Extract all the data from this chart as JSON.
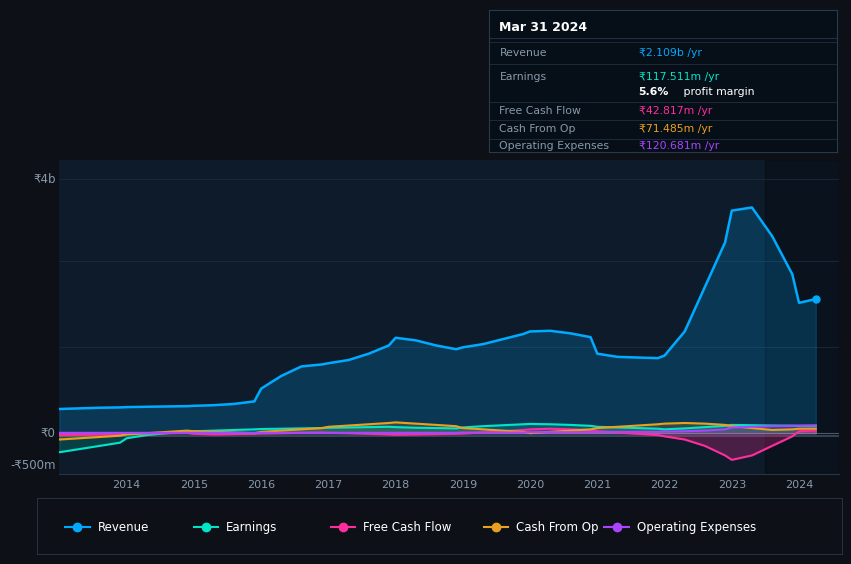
{
  "bg_color": "#0d1117",
  "plot_bg_color": "#0d1b2a",
  "grid_color": "#1a2a3a",
  "zero_line_color": "#506070",
  "grey_line_color": "#607080",
  "title": "Mar 31 2024",
  "ylabel_4b": "₹4b",
  "ylabel_0": "₹0",
  "ylabel_neg500": "-₹500m",
  "ylim": [
    -650000000,
    4300000000
  ],
  "xlim": [
    2013.0,
    2024.6
  ],
  "x": [
    2013.0,
    2013.3,
    2013.6,
    2013.9,
    2014.0,
    2014.3,
    2014.6,
    2014.9,
    2015.0,
    2015.3,
    2015.6,
    2015.9,
    2016.0,
    2016.3,
    2016.6,
    2016.9,
    2017.0,
    2017.3,
    2017.6,
    2017.9,
    2018.0,
    2018.3,
    2018.6,
    2018.9,
    2019.0,
    2019.3,
    2019.6,
    2019.9,
    2020.0,
    2020.3,
    2020.6,
    2020.9,
    2021.0,
    2021.3,
    2021.6,
    2021.9,
    2022.0,
    2022.3,
    2022.6,
    2022.9,
    2023.0,
    2023.3,
    2023.6,
    2023.9,
    2024.0,
    2024.25
  ],
  "revenue": [
    380000000,
    390000000,
    400000000,
    405000000,
    410000000,
    415000000,
    420000000,
    425000000,
    430000000,
    440000000,
    460000000,
    500000000,
    700000000,
    900000000,
    1050000000,
    1080000000,
    1100000000,
    1150000000,
    1250000000,
    1380000000,
    1500000000,
    1460000000,
    1380000000,
    1320000000,
    1350000000,
    1400000000,
    1480000000,
    1560000000,
    1600000000,
    1610000000,
    1570000000,
    1510000000,
    1250000000,
    1200000000,
    1190000000,
    1180000000,
    1220000000,
    1600000000,
    2300000000,
    3000000000,
    3500000000,
    3550000000,
    3100000000,
    2500000000,
    2050000000,
    2109000000
  ],
  "earnings": [
    -300000000,
    -250000000,
    -200000000,
    -150000000,
    -80000000,
    -30000000,
    0,
    20000000,
    30000000,
    40000000,
    50000000,
    60000000,
    65000000,
    70000000,
    75000000,
    80000000,
    85000000,
    90000000,
    95000000,
    100000000,
    95000000,
    85000000,
    80000000,
    75000000,
    90000000,
    110000000,
    125000000,
    140000000,
    145000000,
    140000000,
    130000000,
    115000000,
    100000000,
    90000000,
    80000000,
    70000000,
    60000000,
    75000000,
    95000000,
    115000000,
    130000000,
    125000000,
    120000000,
    118000000,
    115000000,
    117511000
  ],
  "free_cash_flow": [
    -30000000,
    -25000000,
    -20000000,
    -15000000,
    -10000000,
    -5000000,
    0,
    5000000,
    -10000000,
    -20000000,
    -15000000,
    -10000000,
    -5000000,
    0,
    5000000,
    10000000,
    5000000,
    0,
    -10000000,
    -20000000,
    -25000000,
    -20000000,
    -15000000,
    -10000000,
    -5000000,
    10000000,
    30000000,
    50000000,
    60000000,
    70000000,
    60000000,
    50000000,
    30000000,
    10000000,
    -10000000,
    -30000000,
    -50000000,
    -100000000,
    -200000000,
    -350000000,
    -420000000,
    -350000000,
    -200000000,
    -50000000,
    30000000,
    42817000
  ],
  "cash_from_op": [
    -100000000,
    -80000000,
    -60000000,
    -40000000,
    -20000000,
    0,
    20000000,
    40000000,
    30000000,
    20000000,
    10000000,
    0,
    20000000,
    40000000,
    60000000,
    80000000,
    100000000,
    120000000,
    140000000,
    160000000,
    170000000,
    150000000,
    130000000,
    110000000,
    80000000,
    60000000,
    40000000,
    20000000,
    0,
    20000000,
    40000000,
    60000000,
    80000000,
    100000000,
    120000000,
    140000000,
    150000000,
    160000000,
    150000000,
    130000000,
    110000000,
    80000000,
    50000000,
    60000000,
    70000000,
    71485000
  ],
  "operating_expenses": [
    5000000,
    5000000,
    5000000,
    5000000,
    5000000,
    5000000,
    5000000,
    5000000,
    5000000,
    5000000,
    5000000,
    5000000,
    5000000,
    5000000,
    5000000,
    5000000,
    5000000,
    5000000,
    5000000,
    5000000,
    5000000,
    5000000,
    5000000,
    5000000,
    10000000,
    10000000,
    10000000,
    10000000,
    15000000,
    15000000,
    15000000,
    15000000,
    20000000,
    20000000,
    20000000,
    20000000,
    25000000,
    30000000,
    40000000,
    60000000,
    90000000,
    100000000,
    110000000,
    115000000,
    118000000,
    120681000
  ],
  "revenue_color": "#00aaff",
  "earnings_color": "#00e5c8",
  "fcf_color": "#ff2d9b",
  "cashop_color": "#e8a020",
  "opex_color": "#aa44ff",
  "info_box_bg": "#060e18",
  "info_box_border": "#2a3a4a",
  "info_box_title": "Mar 31 2024",
  "info_box_revenue_label": "Revenue",
  "info_box_revenue_val": "₹2.109b /yr",
  "info_box_earnings_label": "Earnings",
  "info_box_earnings_val": "₹117.511m /yr",
  "info_box_margin": "5.6% profit margin",
  "info_box_fcf_label": "Free Cash Flow",
  "info_box_fcf_val": "₹42.817m /yr",
  "info_box_cashop_label": "Cash From Op",
  "info_box_cashop_val": "₹71.485m /yr",
  "info_box_opex_label": "Operating Expenses",
  "info_box_opex_val": "₹120.681m /yr",
  "legend_labels": [
    "Revenue",
    "Earnings",
    "Free Cash Flow",
    "Cash From Op",
    "Operating Expenses"
  ]
}
